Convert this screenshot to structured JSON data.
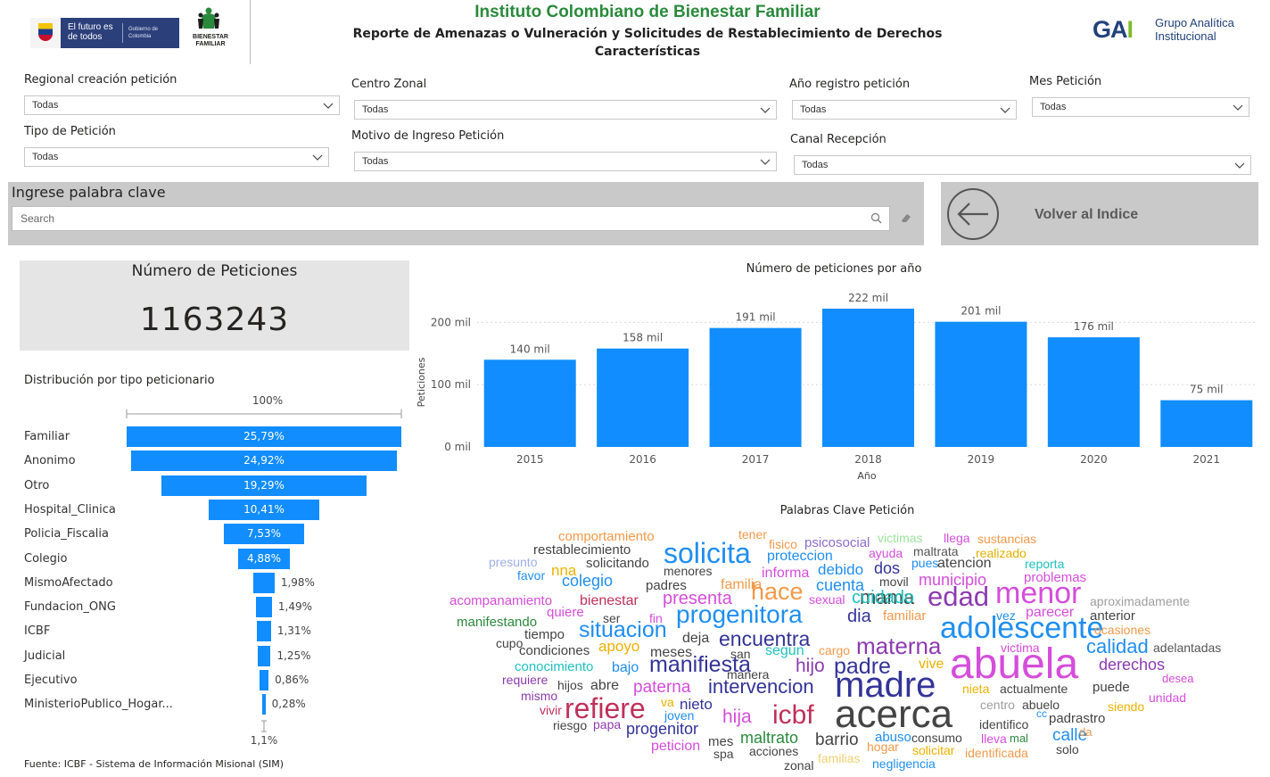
{
  "header": {
    "gov_logo": {
      "line1": "El futuro es de todos",
      "line2": "Gobierno de Colombia"
    },
    "icbf_logo_text": "BIENESTAR FAMILIAR",
    "title": "Instituto Colombiano de Bienestar Familiar",
    "subtitle": "Reporte de Amenazas o Vulneración y Solicitudes de Restablecimiento de Derechos",
    "subtitle2": "Características",
    "gai_logo": {
      "mark": "GAI",
      "line1": "Grupo Analítica",
      "line2": "Institucional"
    }
  },
  "filters": {
    "regional": {
      "label": "Regional creación petición",
      "value": "Todas"
    },
    "centro_zonal": {
      "label": "Centro Zonal",
      "value": "Todas"
    },
    "anio": {
      "label": "Año registro petición",
      "value": "Todas"
    },
    "mes": {
      "label": "Mes Petición",
      "value": "Todas"
    },
    "tipo": {
      "label": "Tipo de Petición",
      "value": "Todas"
    },
    "motivo": {
      "label": "Motivo de Ingreso Petición",
      "value": "Todas"
    },
    "canal": {
      "label": "Canal Recepción",
      "value": "Todas"
    }
  },
  "search": {
    "title": "Ingrese palabra clave",
    "placeholder": "Search"
  },
  "back_button": {
    "label": "Volver al Indice"
  },
  "kpi": {
    "title": "Número de Peticiones",
    "value": "1163243"
  },
  "funnel": {
    "title": "Distribución por tipo peticionario",
    "top_label": "100%",
    "bottom_label": "1,1%",
    "items": [
      {
        "label": "Familiar",
        "pct": 25.79,
        "text": "25,79%"
      },
      {
        "label": "Anonimo",
        "pct": 24.92,
        "text": "24,92%"
      },
      {
        "label": "Otro",
        "pct": 19.29,
        "text": "19,29%"
      },
      {
        "label": "Hospital_Clinica",
        "pct": 10.41,
        "text": "10,41%"
      },
      {
        "label": "Policia_Fiscalia",
        "pct": 7.53,
        "text": "7,53%"
      },
      {
        "label": "Colegio",
        "pct": 4.88,
        "text": "4,88%"
      },
      {
        "label": "MismoAfectado",
        "pct": 1.98,
        "text": "1,98%"
      },
      {
        "label": "Fundacion_ONG",
        "pct": 1.49,
        "text": "1,49%"
      },
      {
        "label": "ICBF",
        "pct": 1.31,
        "text": "1,31%"
      },
      {
        "label": "Judicial",
        "pct": 1.25,
        "text": "1,25%"
      },
      {
        "label": "Ejecutivo",
        "pct": 0.86,
        "text": "0,86%"
      },
      {
        "label": "MinisterioPublico_Hogar...",
        "pct": 0.28,
        "text": "0,28%"
      }
    ]
  },
  "source": "Fuente: ICBF - Sistema de Información Misional (SIM)",
  "chart_data": {
    "type": "bar",
    "title": "Número de peticiones por año",
    "xlabel": "Año",
    "ylabel": "Peticiones",
    "categories": [
      "2015",
      "2016",
      "2017",
      "2018",
      "2019",
      "2020",
      "2021"
    ],
    "values": [
      140000,
      158000,
      191000,
      222000,
      201000,
      176000,
      75000
    ],
    "data_labels": [
      "140 mil",
      "158 mil",
      "191 mil",
      "222 mil",
      "201 mil",
      "176 mil",
      "75 mil"
    ],
    "ylim": [
      0,
      222000
    ],
    "yticks": [
      0,
      100000,
      200000
    ],
    "ytick_labels": [
      "0 mil",
      "100 mil",
      "200 mil"
    ],
    "color": "#118dff",
    "grid": true
  },
  "wordcloud": {
    "title": "Palabras Clave Petición",
    "words": [
      {
        "t": "comportamiento",
        "c": "#f2994a"
      },
      {
        "t": "tener",
        "c": "#f2994a"
      },
      {
        "t": "fisico",
        "c": "#f2994a"
      },
      {
        "t": "psicosocial",
        "c": "#8d6ccf"
      },
      {
        "t": "victimas",
        "c": "#9be39b"
      },
      {
        "t": "llega",
        "c": "#d54ddb"
      },
      {
        "t": "sustancias",
        "c": "#f2994a"
      },
      {
        "t": "restablecimiento",
        "c": "#444444"
      },
      {
        "t": "solicita",
        "c": "#1f8ef1"
      },
      {
        "t": "proteccion",
        "c": "#1f8ef1"
      },
      {
        "t": "ayuda",
        "c": "#d54ddb"
      },
      {
        "t": "maltrata",
        "c": "#555555"
      },
      {
        "t": "realizado",
        "c": "#e0b000"
      },
      {
        "t": "presunto",
        "c": "#9eaee8"
      },
      {
        "t": "solicitando",
        "c": "#444444"
      },
      {
        "t": "debido",
        "c": "#1f8ef1"
      },
      {
        "t": "dos",
        "c": "#333399"
      },
      {
        "t": "pues",
        "c": "#1f8ef1"
      },
      {
        "t": "atencion",
        "c": "#444444"
      },
      {
        "t": "reporta",
        "c": "#20c0c0"
      },
      {
        "t": "nna",
        "c": "#f0b000"
      },
      {
        "t": "menores",
        "c": "#444444"
      },
      {
        "t": "favor",
        "c": "#1f8ef1"
      },
      {
        "t": "colegio",
        "c": "#1f8ef1"
      },
      {
        "t": "informa",
        "c": "#d54ddb"
      },
      {
        "t": "municipio",
        "c": "#d54ddb"
      },
      {
        "t": "problemas",
        "c": "#d54ddb"
      },
      {
        "t": "padres",
        "c": "#444444"
      },
      {
        "t": "cuenta",
        "c": "#1f8ef1"
      },
      {
        "t": "mama",
        "c": "#444444"
      },
      {
        "t": "menor",
        "c": "#d54ddb"
      },
      {
        "t": "movil",
        "c": "#444444"
      },
      {
        "t": "acompanamiento",
        "c": "#d54ddb"
      },
      {
        "t": "bienestar",
        "c": "#c0305a"
      },
      {
        "t": "presenta",
        "c": "#d54ddb"
      },
      {
        "t": "hace",
        "c": "#f2994a"
      },
      {
        "t": "sexual",
        "c": "#d54ddb"
      },
      {
        "t": "cuidado",
        "c": "#20c0c0"
      },
      {
        "t": "edad",
        "c": "#8d3bb0"
      },
      {
        "t": "aproximadamente",
        "c": "#9e9e9e"
      },
      {
        "t": "manifestando",
        "c": "#2a8a3c"
      },
      {
        "t": "quiere",
        "c": "#d54ddb"
      },
      {
        "t": "ser",
        "c": "#444444"
      },
      {
        "t": "fin",
        "c": "#d54ddb"
      },
      {
        "t": "progenitora",
        "c": "#1f8ef1"
      },
      {
        "t": "dia",
        "c": "#333399"
      },
      {
        "t": "familiar",
        "c": "#f2994a"
      },
      {
        "t": "vez",
        "c": "#1f8ef1"
      },
      {
        "t": "parecer",
        "c": "#d54ddb"
      },
      {
        "t": "anterior",
        "c": "#444444"
      },
      {
        "t": "cupo",
        "c": "#444444"
      },
      {
        "t": "tiempo",
        "c": "#444444"
      },
      {
        "t": "situacion",
        "c": "#1f8ef1"
      },
      {
        "t": "deja",
        "c": "#444444"
      },
      {
        "t": "encuentra",
        "c": "#333399"
      },
      {
        "t": "familia",
        "c": "#f2994a"
      },
      {
        "t": "adolescente",
        "c": "#1f8ef1"
      },
      {
        "t": "ocasiones",
        "c": "#f2994a"
      },
      {
        "t": "condiciones",
        "c": "#444444"
      },
      {
        "t": "apoyo",
        "c": "#f0b000"
      },
      {
        "t": "meses",
        "c": "#444444"
      },
      {
        "t": "san",
        "c": "#444444"
      },
      {
        "t": "segun",
        "c": "#20c0c0"
      },
      {
        "t": "cargo",
        "c": "#f2994a"
      },
      {
        "t": "materna",
        "c": "#8d3bb0"
      },
      {
        "t": "victima",
        "c": "#d54ddb"
      },
      {
        "t": "calidad",
        "c": "#1f8ef1"
      },
      {
        "t": "adelantadas",
        "c": "#555555"
      },
      {
        "t": "conocimiento",
        "c": "#20c0c0"
      },
      {
        "t": "bajo",
        "c": "#1f8ef1"
      },
      {
        "t": "manifiesta",
        "c": "#333399"
      },
      {
        "t": "hijo",
        "c": "#8d3bb0"
      },
      {
        "t": "padre",
        "c": "#333399"
      },
      {
        "t": "vive",
        "c": "#f0b000"
      },
      {
        "t": "abuela",
        "c": "#d54ddb"
      },
      {
        "t": "derechos",
        "c": "#8d3bb0"
      },
      {
        "t": "requiere",
        "c": "#8d3bb0"
      },
      {
        "t": "hijos",
        "c": "#444444"
      },
      {
        "t": "abre",
        "c": "#444444"
      },
      {
        "t": "paterna",
        "c": "#d54ddb"
      },
      {
        "t": "manera",
        "c": "#444444"
      },
      {
        "t": "intervencion",
        "c": "#333399"
      },
      {
        "t": "madre",
        "c": "#333399"
      },
      {
        "t": "nieta",
        "c": "#f0b000"
      },
      {
        "t": "actualmente",
        "c": "#444444"
      },
      {
        "t": "puede",
        "c": "#444444"
      },
      {
        "t": "desea",
        "c": "#d54ddb"
      },
      {
        "t": "mismo",
        "c": "#8d3bb0"
      },
      {
        "t": "va",
        "c": "#f0b000"
      },
      {
        "t": "nieto",
        "c": "#333399"
      },
      {
        "t": "unidad",
        "c": "#d54ddb"
      },
      {
        "t": "vivir",
        "c": "#c0305a"
      },
      {
        "t": "refiere",
        "c": "#c0305a"
      },
      {
        "t": "joven",
        "c": "#1f8ef1"
      },
      {
        "t": "hija",
        "c": "#d54ddb"
      },
      {
        "t": "icbf",
        "c": "#c0305a"
      },
      {
        "t": "acerca",
        "c": "#444444"
      },
      {
        "t": "centro",
        "c": "#9e9e9e"
      },
      {
        "t": "abuelo",
        "c": "#444444"
      },
      {
        "t": "siendo",
        "c": "#f0b000"
      },
      {
        "t": "riesgo",
        "c": "#444444"
      },
      {
        "t": "papa",
        "c": "#8d3bb0"
      },
      {
        "t": "progenitor",
        "c": "#333399"
      },
      {
        "t": "identifico",
        "c": "#444444"
      },
      {
        "t": "cc",
        "c": "#1f8ef1"
      },
      {
        "t": "padrastro",
        "c": "#444444"
      },
      {
        "t": "mes",
        "c": "#444444"
      },
      {
        "t": "maltrato",
        "c": "#2a8a3c"
      },
      {
        "t": "barrio",
        "c": "#444444"
      },
      {
        "t": "abuso",
        "c": "#1f8ef1"
      },
      {
        "t": "consumo",
        "c": "#444444"
      },
      {
        "t": "lleva",
        "c": "#d54ddb"
      },
      {
        "t": "mal",
        "c": "#2a8a3c"
      },
      {
        "t": "calle",
        "c": "#1f8ef1"
      },
      {
        "t": "da",
        "c": "#f2994a"
      },
      {
        "t": "peticion",
        "c": "#d54ddb"
      },
      {
        "t": "spa",
        "c": "#444444"
      },
      {
        "t": "acciones",
        "c": "#444444"
      },
      {
        "t": "hogar",
        "c": "#f2994a"
      },
      {
        "t": "solicitar",
        "c": "#f0b000"
      },
      {
        "t": "identificada",
        "c": "#f2994a"
      },
      {
        "t": "solo",
        "c": "#444444"
      },
      {
        "t": "familias",
        "c": "#f0d070"
      },
      {
        "t": "zonal",
        "c": "#444444"
      },
      {
        "t": "negligencia",
        "c": "#1f8ef1"
      }
    ]
  }
}
